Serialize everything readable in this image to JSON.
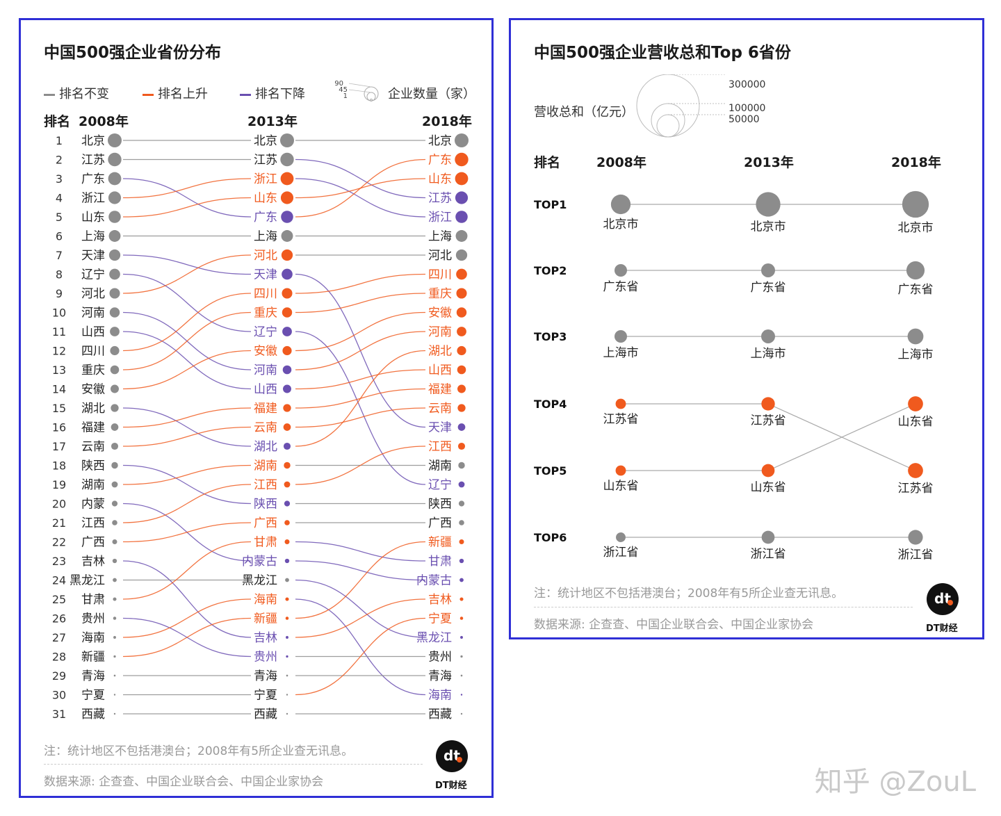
{
  "colors": {
    "same": "#8c8c8c",
    "up": "#f05a1e",
    "down": "#6a4fb0",
    "border": "#2f2fd6"
  },
  "left": {
    "title": "中国500强企业省份分布",
    "legend": {
      "same": "排名不变",
      "up": "排名上升",
      "down": "排名下降",
      "size_label": "企业数量（家）",
      "size_ticks": [
        "90",
        "45",
        "1"
      ]
    },
    "header": {
      "rank": "排名",
      "y2008": "2008年",
      "y2013": "2013年",
      "y2018": "2018年"
    },
    "note": "注：统计地区不包括港澳台；2008年有5所企业查无讯息。",
    "source": "数据来源: 企查查、中国企业联合会、中国企业家协会"
  },
  "right": {
    "title": "中国500强企业营收总和Top 6省份",
    "legend": {
      "label": "营收总和（亿元）",
      "ticks": [
        "300000",
        "100000",
        "50000"
      ]
    },
    "header": {
      "rank": "排名",
      "y2008": "2008年",
      "y2013": "2013年",
      "y2018": "2018年"
    },
    "note": "注：统计地区不包括港澳台；2008年有5所企业查无讯息。",
    "source": "数据来源: 企查查、中国企业联合会、中国企业家协会"
  },
  "logo": {
    "mark": "dt",
    "caption": "DT财经"
  },
  "watermark": "知乎 @ZouL",
  "chart_data": [
    {
      "type": "bump",
      "title": "中国500强企业省份分布",
      "ranks": [
        1,
        2,
        3,
        4,
        5,
        6,
        7,
        8,
        9,
        10,
        11,
        12,
        13,
        14,
        15,
        16,
        17,
        18,
        19,
        20,
        21,
        22,
        23,
        24,
        25,
        26,
        27,
        28,
        29,
        30,
        31
      ],
      "y2008": [
        "北京",
        "江苏",
        "广东",
        "浙江",
        "山东",
        "上海",
        "天津",
        "辽宁",
        "河北",
        "河南",
        "山西",
        "四川",
        "重庆",
        "安徽",
        "湖北",
        "福建",
        "云南",
        "陕西",
        "湖南",
        "内蒙",
        "江西",
        "广西",
        "吉林",
        "黑龙江",
        "甘肃",
        "贵州",
        "海南",
        "新疆",
        "青海",
        "宁夏",
        "西藏"
      ],
      "y2013": [
        {
          "name": "北京",
          "change": "same"
        },
        {
          "name": "江苏",
          "change": "same"
        },
        {
          "name": "浙江",
          "change": "up"
        },
        {
          "name": "山东",
          "change": "up"
        },
        {
          "name": "广东",
          "change": "down"
        },
        {
          "name": "上海",
          "change": "same"
        },
        {
          "name": "河北",
          "change": "up"
        },
        {
          "name": "天津",
          "change": "down"
        },
        {
          "name": "四川",
          "change": "up"
        },
        {
          "name": "重庆",
          "change": "up"
        },
        {
          "name": "辽宁",
          "change": "down"
        },
        {
          "name": "安徽",
          "change": "up"
        },
        {
          "name": "河南",
          "change": "down"
        },
        {
          "name": "山西",
          "change": "down"
        },
        {
          "name": "福建",
          "change": "up"
        },
        {
          "name": "云南",
          "change": "up"
        },
        {
          "name": "湖北",
          "change": "down"
        },
        {
          "name": "湖南",
          "change": "up"
        },
        {
          "name": "江西",
          "change": "up"
        },
        {
          "name": "陕西",
          "change": "down"
        },
        {
          "name": "广西",
          "change": "up"
        },
        {
          "name": "甘肃",
          "change": "up"
        },
        {
          "name": "内蒙古",
          "change": "down"
        },
        {
          "name": "黑龙江",
          "change": "same"
        },
        {
          "name": "海南",
          "change": "up"
        },
        {
          "name": "新疆",
          "change": "up"
        },
        {
          "name": "吉林",
          "change": "down"
        },
        {
          "name": "贵州",
          "change": "down"
        },
        {
          "name": "青海",
          "change": "same"
        },
        {
          "name": "宁夏",
          "change": "same"
        },
        {
          "name": "西藏",
          "change": "same"
        }
      ],
      "y2018": [
        {
          "name": "北京",
          "change": "same"
        },
        {
          "name": "广东",
          "change": "up"
        },
        {
          "name": "山东",
          "change": "up"
        },
        {
          "name": "江苏",
          "change": "down"
        },
        {
          "name": "浙江",
          "change": "down"
        },
        {
          "name": "上海",
          "change": "same"
        },
        {
          "name": "河北",
          "change": "same"
        },
        {
          "name": "四川",
          "change": "up"
        },
        {
          "name": "重庆",
          "change": "up"
        },
        {
          "name": "安徽",
          "change": "up"
        },
        {
          "name": "河南",
          "change": "up"
        },
        {
          "name": "湖北",
          "change": "up"
        },
        {
          "name": "山西",
          "change": "up"
        },
        {
          "name": "福建",
          "change": "up"
        },
        {
          "name": "云南",
          "change": "up"
        },
        {
          "name": "天津",
          "change": "down"
        },
        {
          "name": "江西",
          "change": "up"
        },
        {
          "name": "湖南",
          "change": "same"
        },
        {
          "name": "辽宁",
          "change": "down"
        },
        {
          "name": "陕西",
          "change": "same"
        },
        {
          "name": "广西",
          "change": "same"
        },
        {
          "name": "新疆",
          "change": "up"
        },
        {
          "name": "甘肃",
          "change": "down"
        },
        {
          "name": "内蒙古",
          "change": "down"
        },
        {
          "name": "吉林",
          "change": "up"
        },
        {
          "name": "宁夏",
          "change": "up"
        },
        {
          "name": "黑龙江",
          "change": "down"
        },
        {
          "name": "贵州",
          "change": "same"
        },
        {
          "name": "青海",
          "change": "same"
        },
        {
          "name": "海南",
          "change": "down"
        },
        {
          "name": "西藏",
          "change": "same"
        }
      ]
    },
    {
      "type": "bump",
      "title": "中国500强企业营收总和Top 6省份",
      "ranks": [
        "TOP1",
        "TOP2",
        "TOP3",
        "TOP4",
        "TOP5",
        "TOP6"
      ],
      "years": [
        "2008年",
        "2013年",
        "2018年"
      ],
      "y2008": [
        {
          "name": "北京市",
          "change": "same",
          "size": 3
        },
        {
          "name": "广东省",
          "change": "same",
          "size": 1
        },
        {
          "name": "上海市",
          "change": "same",
          "size": 1
        },
        {
          "name": "江苏省",
          "change": "up",
          "size": 0.6
        },
        {
          "name": "山东省",
          "change": "up",
          "size": 0.6
        },
        {
          "name": "浙江省",
          "change": "same",
          "size": 0.5
        }
      ],
      "y2013": [
        {
          "name": "北京市",
          "change": "same",
          "size": 5
        },
        {
          "name": "广东省",
          "change": "same",
          "size": 1.3
        },
        {
          "name": "上海市",
          "change": "same",
          "size": 1.3
        },
        {
          "name": "江苏省",
          "change": "up",
          "size": 1.2
        },
        {
          "name": "山东省",
          "change": "up",
          "size": 1.1
        },
        {
          "name": "浙江省",
          "change": "same",
          "size": 1.1
        }
      ],
      "y2018": [
        {
          "name": "北京市",
          "change": "same",
          "size": 6
        },
        {
          "name": "广东省",
          "change": "same",
          "size": 2.5
        },
        {
          "name": "上海市",
          "change": "same",
          "size": 1.8
        },
        {
          "name": "山东省",
          "change": "up",
          "size": 1.6
        },
        {
          "name": "江苏省",
          "change": "up",
          "size": 1.6
        },
        {
          "name": "浙江省",
          "change": "same",
          "size": 1.5
        }
      ]
    }
  ]
}
